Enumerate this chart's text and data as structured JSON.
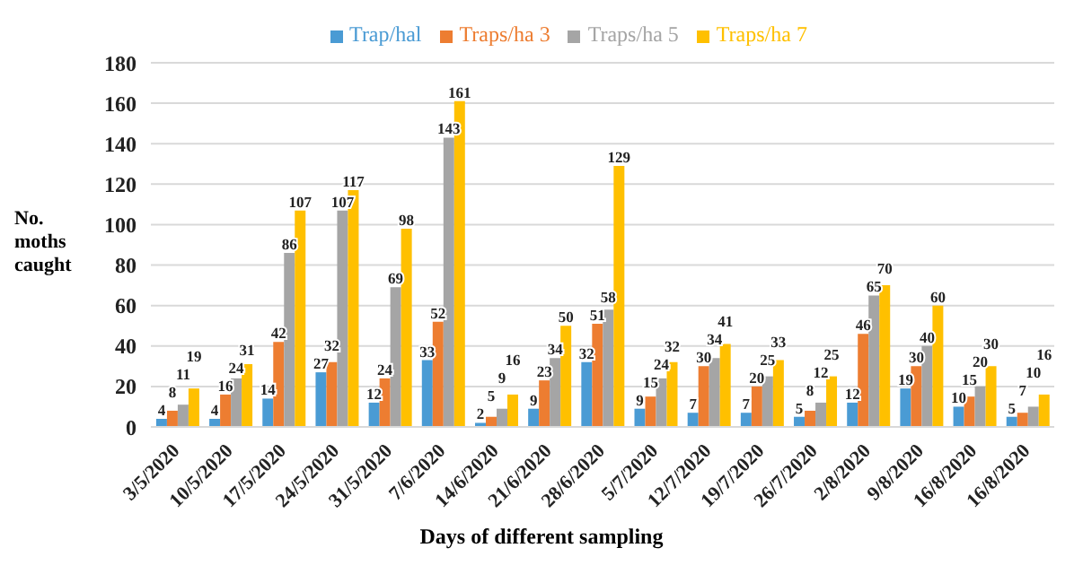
{
  "chart_data": {
    "type": "bar",
    "xlabel": "Days of different sampling",
    "ylabel": "No. moths caught",
    "categories": [
      "3/5/2020",
      "10/5/2020",
      "17/5/2020",
      "24/5/2020",
      "31/5/2020",
      "7/6/2020",
      "14/6/2020",
      "21/6/2020",
      "28/6/2020",
      "5/7/2020",
      "12/7/2020",
      "19/7/2020",
      "26/7/2020",
      "2/8/2020",
      "9/8/2020",
      "16/8/2020",
      "16/8/2020"
    ],
    "series": [
      {
        "name": "Trap/hal",
        "color": "#4a9bd4",
        "values": [
          4,
          4,
          14,
          27,
          12,
          33,
          2,
          9,
          32,
          9,
          7,
          7,
          5,
          12,
          19,
          10,
          5
        ]
      },
      {
        "name": "Traps/ha 3",
        "color": "#ed7d31",
        "values": [
          8,
          16,
          42,
          32,
          24,
          52,
          5,
          23,
          51,
          15,
          30,
          20,
          8,
          46,
          30,
          15,
          7
        ]
      },
      {
        "name": "Traps/ha 5",
        "color": "#a5a5a5",
        "values": [
          11,
          24,
          86,
          107,
          69,
          143,
          9,
          34,
          58,
          24,
          34,
          25,
          12,
          65,
          40,
          20,
          10
        ]
      },
      {
        "name": "Traps/ha 7",
        "color": "#ffc000",
        "values": [
          19,
          31,
          107,
          117,
          98,
          161,
          16,
          50,
          129,
          32,
          41,
          33,
          25,
          70,
          60,
          30,
          16
        ]
      }
    ],
    "ylim": [
      0,
      180
    ],
    "yticks": [
      0,
      20,
      40,
      60,
      80,
      100,
      120,
      140,
      160,
      180
    ],
    "grid": "y",
    "legend": "top",
    "data_labels": true
  }
}
